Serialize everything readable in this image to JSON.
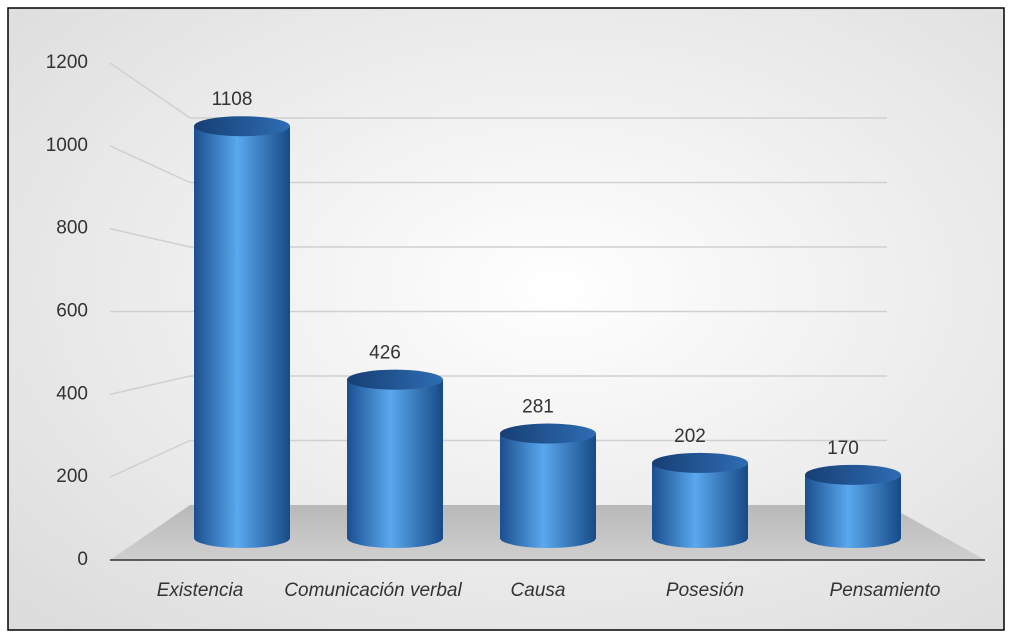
{
  "chart_data": {
    "type": "bar",
    "categories": [
      "Existencia",
      "Comunicación verbal",
      "Causa",
      "Posesión",
      "Pensamiento"
    ],
    "values": [
      1108,
      426,
      281,
      202,
      170
    ],
    "color": "#2e75c8",
    "ylim": [
      0,
      1200
    ],
    "yticks": [
      0,
      200,
      400,
      600,
      800,
      1000,
      1200
    ],
    "grid": true
  }
}
